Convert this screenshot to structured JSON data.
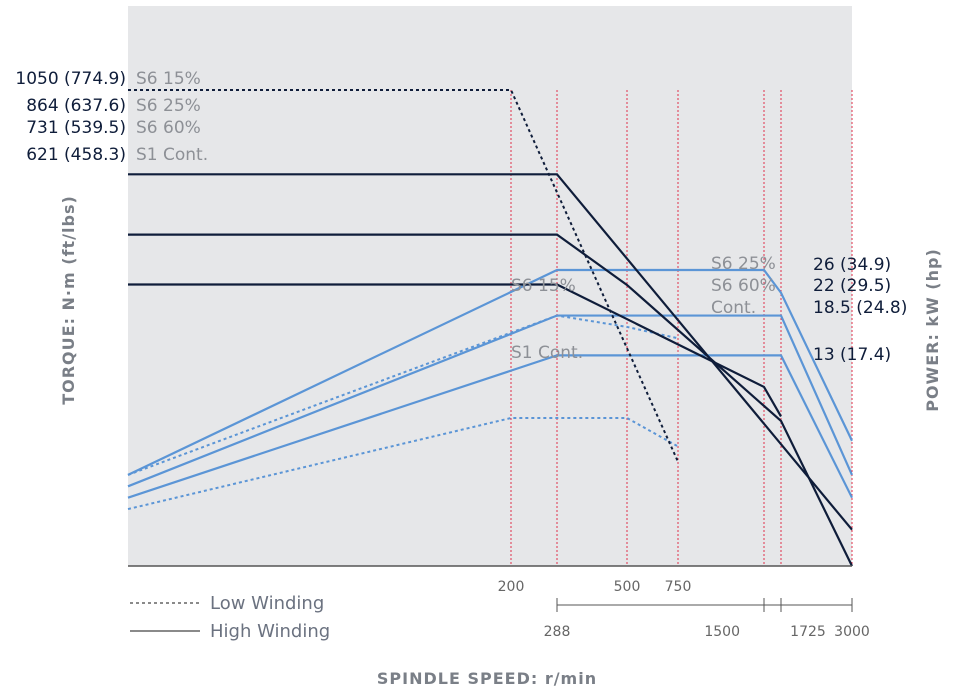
{
  "chart_data": {
    "type": "line",
    "xlabel": "SPINDLE SPEED: r/min",
    "ylabel_left": "TORQUE: N·m (ft/lbs)",
    "ylabel_right": "POWER: kW (hp)",
    "low_winding_ticks": [
      "200",
      "500",
      "750"
    ],
    "high_winding_ticks": [
      "288",
      "1500",
      "1725",
      "3000"
    ],
    "legend": [
      {
        "label": "Low Winding",
        "style": "dashed"
      },
      {
        "label": "High Winding",
        "style": "solid"
      }
    ],
    "torque_labels": [
      {
        "value": "1050 (774.9)",
        "series": "S6 15%"
      },
      {
        "value": "864 (637.6)",
        "series": "S6 25%"
      },
      {
        "value": "731 (539.5)",
        "series": "S6 60%"
      },
      {
        "value": "621 (458.3)",
        "series": "S1 Cont."
      }
    ],
    "power_labels": [
      {
        "value": "26 (34.9)"
      },
      {
        "value": "22 (29.5)"
      },
      {
        "value": "18.5 (24.8)"
      },
      {
        "value": "13 (17.4)"
      }
    ],
    "power_series_labels": [
      {
        "text": "S6 15%"
      },
      {
        "text": "S1 Cont."
      },
      {
        "text": "S6 25%"
      },
      {
        "text": "S6 60%"
      },
      {
        "text": "Cont."
      }
    ],
    "torque_series": [
      {
        "winding": "low",
        "values": [
          [
            0,
            1050
          ],
          [
            200,
            1050
          ],
          [
            750,
            230
          ]
        ]
      },
      {
        "winding": "low",
        "values": [
          [
            0,
            621
          ],
          [
            200,
            621
          ]
        ]
      },
      {
        "winding": "high",
        "values": [
          [
            0,
            864
          ],
          [
            288,
            864
          ],
          [
            3000,
            80
          ]
        ]
      },
      {
        "winding": "high",
        "values": [
          [
            0,
            731
          ],
          [
            288,
            731
          ],
          [
            500,
            620
          ],
          [
            1725,
            320
          ],
          [
            3000,
            0
          ]
        ]
      },
      {
        "winding": "high",
        "values": [
          [
            0,
            621
          ],
          [
            288,
            621
          ],
          [
            1500,
            395
          ],
          [
            1725,
            330
          ]
        ]
      }
    ],
    "power_series": [
      {
        "winding": "low",
        "values": [
          [
            0,
            8
          ],
          [
            200,
            20.5
          ],
          [
            288,
            22
          ],
          [
            500,
            21
          ],
          [
            750,
            20
          ]
        ]
      },
      {
        "winding": "low",
        "values": [
          [
            0,
            5
          ],
          [
            200,
            13
          ],
          [
            500,
            13
          ],
          [
            750,
            10.5
          ]
        ]
      },
      {
        "winding": "high",
        "values": [
          [
            0,
            8
          ],
          [
            288,
            26
          ],
          [
            1500,
            26
          ],
          [
            1725,
            24
          ],
          [
            3000,
            11
          ]
        ]
      },
      {
        "winding": "high",
        "values": [
          [
            0,
            7
          ],
          [
            288,
            22
          ],
          [
            1725,
            22
          ],
          [
            3000,
            8
          ]
        ]
      },
      {
        "winding": "high",
        "values": [
          [
            0,
            6
          ],
          [
            288,
            18.5
          ],
          [
            1725,
            18.5
          ],
          [
            3000,
            6
          ]
        ]
      }
    ],
    "colors": {
      "plot_background": "#e6e7e9",
      "torque_line": "#0f1d3a",
      "power_line": "#5b95d6",
      "reference_line": "#e0304a",
      "axis": "#555555"
    }
  }
}
